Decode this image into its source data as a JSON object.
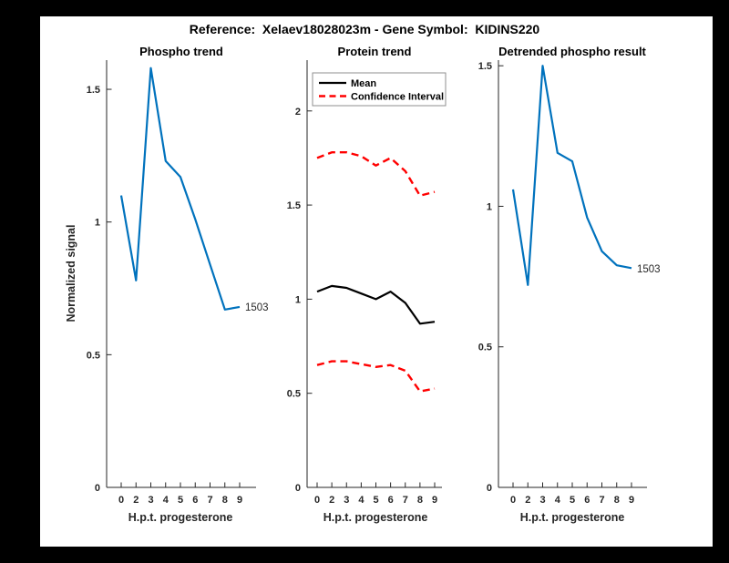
{
  "figure": {
    "title": "Reference:  Xelaev18028023m - Gene Symbol:  KIDINS220",
    "background": "#000000",
    "canvas": "#ffffff"
  },
  "colors": {
    "blue": "#0072BD",
    "red": "#ff0000",
    "black": "#000000",
    "axis": "#262626"
  },
  "chart_data": [
    {
      "type": "line",
      "title": "Phospho trend",
      "xlabel": "H.p.t. progesterone",
      "ylabel": "Normalized signal",
      "x": [
        0,
        2,
        3,
        4,
        5,
        6,
        7,
        8,
        9
      ],
      "x_tick_labels": [
        "0",
        "2",
        "3",
        "4",
        "5",
        "6",
        "7",
        "8",
        "9"
      ],
      "yticks": [
        0,
        0.5,
        1,
        1.5
      ],
      "ylim": [
        0,
        1.61
      ],
      "grid": false,
      "legend": null,
      "series": [
        {
          "name": "1503",
          "color": "#0072BD",
          "style": "solid",
          "end_label": "1503",
          "values": [
            1.1,
            0.78,
            1.58,
            1.23,
            1.17,
            1.01,
            0.84,
            0.67,
            0.68
          ]
        }
      ]
    },
    {
      "type": "line",
      "title": "Protein trend",
      "xlabel": "H.p.t. progesterone",
      "ylabel": "",
      "x": [
        0,
        2,
        3,
        4,
        5,
        6,
        7,
        8,
        9
      ],
      "x_tick_labels": [
        "0",
        "2",
        "3",
        "4",
        "5",
        "6",
        "7",
        "8",
        "9"
      ],
      "yticks": [
        0,
        0.5,
        1,
        1.5,
        2
      ],
      "ylim": [
        0,
        2.27
      ],
      "grid": false,
      "legend": {
        "position": "top-left",
        "entries": [
          {
            "label": "Mean",
            "color": "#000000",
            "style": "solid"
          },
          {
            "label": "Confidence Interval",
            "color": "#ff0000",
            "style": "dashed"
          }
        ]
      },
      "series": [
        {
          "name": "Mean",
          "color": "#000000",
          "style": "solid",
          "values": [
            1.04,
            1.07,
            1.06,
            1.03,
            1.0,
            1.04,
            0.98,
            0.87,
            0.88
          ]
        },
        {
          "name": "Confidence Interval upper",
          "color": "#ff0000",
          "style": "dashed",
          "values": [
            1.75,
            1.78,
            1.78,
            1.76,
            1.71,
            1.75,
            1.68,
            1.55,
            1.57
          ]
        },
        {
          "name": "Confidence Interval lower",
          "color": "#ff0000",
          "style": "dashed",
          "values": [
            0.65,
            0.67,
            0.67,
            0.655,
            0.64,
            0.65,
            0.62,
            0.51,
            0.525
          ]
        }
      ]
    },
    {
      "type": "line",
      "title": "Detrended phospho result",
      "xlabel": "H.p.t. progesterone",
      "ylabel": "",
      "x": [
        0,
        2,
        3,
        4,
        5,
        6,
        7,
        8,
        9
      ],
      "x_tick_labels": [
        "0",
        "2",
        "3",
        "4",
        "5",
        "6",
        "7",
        "8",
        "9"
      ],
      "yticks": [
        0,
        0.5,
        1,
        1.5
      ],
      "ylim": [
        0,
        1.52
      ],
      "grid": false,
      "legend": null,
      "series": [
        {
          "name": "1503",
          "color": "#0072BD",
          "style": "solid",
          "end_label": "1503",
          "values": [
            1.06,
            0.72,
            1.5,
            1.19,
            1.16,
            0.96,
            0.84,
            0.79,
            0.78
          ]
        }
      ]
    }
  ]
}
